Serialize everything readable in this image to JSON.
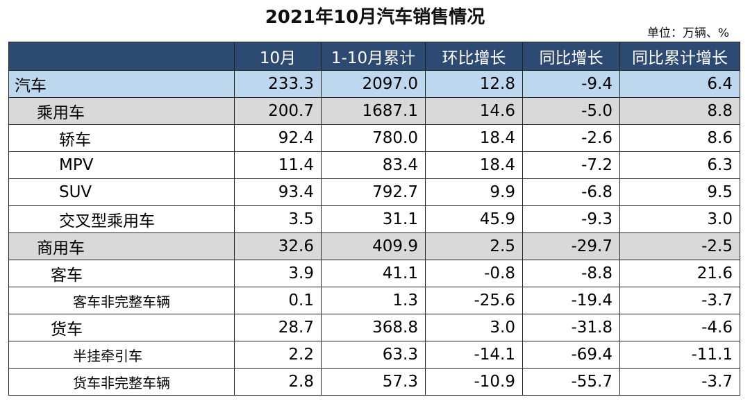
{
  "title": "2021年10月汽车销售情况",
  "unit": "单位：万辆、%",
  "colors": {
    "header_bg": "#2d4a72",
    "total_row_bg": "#bdd7ee",
    "category_row_bg": "#d9d9d9"
  },
  "chart_data": {
    "type": "table",
    "columns": [
      "",
      "10月",
      "1-10月累计",
      "环比增长",
      "同比增长",
      "同比累计增长"
    ],
    "rows": [
      {
        "label": "汽车",
        "level": 0,
        "values": [
          "233.3",
          "2097.0",
          "12.8",
          "-9.4",
          "6.4"
        ]
      },
      {
        "label": "乘用车",
        "level": 1,
        "values": [
          "200.7",
          "1687.1",
          "14.6",
          "-5.0",
          "8.8"
        ]
      },
      {
        "label": "轿车",
        "level": 2,
        "values": [
          "92.4",
          "780.0",
          "18.4",
          "-2.6",
          "8.6"
        ]
      },
      {
        "label": "MPV",
        "level": 2,
        "values": [
          "11.4",
          "83.4",
          "18.4",
          "-7.2",
          "6.3"
        ]
      },
      {
        "label": "SUV",
        "level": 2,
        "values": [
          "93.4",
          "792.7",
          "9.9",
          "-6.8",
          "9.5"
        ]
      },
      {
        "label": "交叉型乘用车",
        "level": 2,
        "values": [
          "3.5",
          "31.1",
          "45.9",
          "-9.3",
          "3.0"
        ]
      },
      {
        "label": "商用车",
        "level": 1,
        "values": [
          "32.6",
          "409.9",
          "2.5",
          "-29.7",
          "-2.5"
        ]
      },
      {
        "label": "客车",
        "level": 3,
        "values": [
          "3.9",
          "41.1",
          "-0.8",
          "-8.8",
          "21.6"
        ]
      },
      {
        "label": "客车非完整车辆",
        "level": 4,
        "values": [
          "0.1",
          "1.3",
          "-25.6",
          "-19.4",
          "-3.7"
        ]
      },
      {
        "label": "货车",
        "level": 3,
        "values": [
          "28.7",
          "368.8",
          "3.0",
          "-31.8",
          "-4.6"
        ]
      },
      {
        "label": "半挂牵引车",
        "level": 4,
        "values": [
          "2.2",
          "63.3",
          "-14.1",
          "-69.4",
          "-11.1"
        ]
      },
      {
        "label": "货车非完整车辆",
        "level": 4,
        "values": [
          "2.8",
          "57.3",
          "-10.9",
          "-55.7",
          "-3.7"
        ]
      }
    ]
  }
}
